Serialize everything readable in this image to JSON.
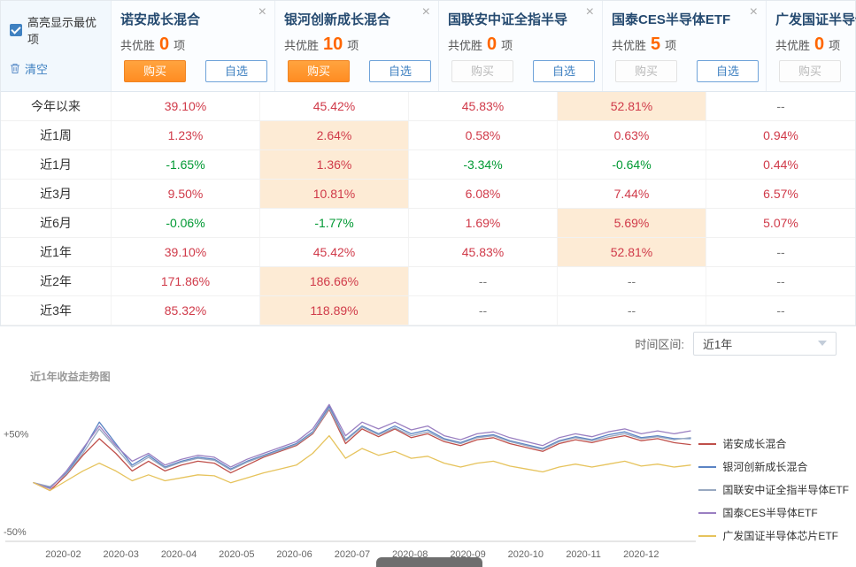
{
  "colors": {
    "positive": "#d03a49",
    "negative": "#009933",
    "highlight": "#fdebd5",
    "accent_blue": "#3f81c1",
    "win_orange": "#ff6600",
    "buy_orange": "#ff9632",
    "fund_name_navy": "#254a70"
  },
  "controls": {
    "highlight_label": "高亮显示最优项",
    "clear_label": "清空"
  },
  "win_text": {
    "prefix": "共优胜",
    "suffix": "项"
  },
  "buttons": {
    "buy": "购买",
    "watch": "自选"
  },
  "funds": [
    {
      "name": "诺安成长混合",
      "win_count": "0",
      "buy_enabled": true
    },
    {
      "name": "银河创新成长混合",
      "win_count": "10",
      "buy_enabled": true
    },
    {
      "name": "国联安中证全指半导",
      "win_count": "0",
      "buy_enabled": false
    },
    {
      "name": "国泰CES半导体ETF",
      "win_count": "5",
      "buy_enabled": false
    },
    {
      "name": "广发国证半导体芯片",
      "win_count": "0",
      "buy_enabled": false
    }
  ],
  "table": {
    "rows": [
      {
        "label": "今年以来",
        "values": [
          {
            "t": "39.10%",
            "c": "up"
          },
          {
            "t": "45.42%",
            "c": "up"
          },
          {
            "t": "45.83%",
            "c": "up"
          },
          {
            "t": "52.81%",
            "c": "up",
            "hl": true
          },
          {
            "t": "--",
            "c": "flat"
          }
        ]
      },
      {
        "label": "近1周",
        "values": [
          {
            "t": "1.23%",
            "c": "up"
          },
          {
            "t": "2.64%",
            "c": "up",
            "hl": true
          },
          {
            "t": "0.58%",
            "c": "up"
          },
          {
            "t": "0.63%",
            "c": "up"
          },
          {
            "t": "0.94%",
            "c": "up"
          }
        ]
      },
      {
        "label": "近1月",
        "values": [
          {
            "t": "-1.65%",
            "c": "down"
          },
          {
            "t": "1.36%",
            "c": "up",
            "hl": true
          },
          {
            "t": "-3.34%",
            "c": "down"
          },
          {
            "t": "-0.64%",
            "c": "down"
          },
          {
            "t": "0.44%",
            "c": "up"
          }
        ]
      },
      {
        "label": "近3月",
        "values": [
          {
            "t": "9.50%",
            "c": "up"
          },
          {
            "t": "10.81%",
            "c": "up",
            "hl": true
          },
          {
            "t": "6.08%",
            "c": "up"
          },
          {
            "t": "7.44%",
            "c": "up"
          },
          {
            "t": "6.57%",
            "c": "up"
          }
        ]
      },
      {
        "label": "近6月",
        "values": [
          {
            "t": "-0.06%",
            "c": "down"
          },
          {
            "t": "-1.77%",
            "c": "down"
          },
          {
            "t": "1.69%",
            "c": "up"
          },
          {
            "t": "5.69%",
            "c": "up",
            "hl": true
          },
          {
            "t": "5.07%",
            "c": "up"
          }
        ]
      },
      {
        "label": "近1年",
        "values": [
          {
            "t": "39.10%",
            "c": "up"
          },
          {
            "t": "45.42%",
            "c": "up"
          },
          {
            "t": "45.83%",
            "c": "up"
          },
          {
            "t": "52.81%",
            "c": "up",
            "hl": true
          },
          {
            "t": "--",
            "c": "flat"
          }
        ]
      },
      {
        "label": "近2年",
        "values": [
          {
            "t": "171.86%",
            "c": "up"
          },
          {
            "t": "186.66%",
            "c": "up",
            "hl": true
          },
          {
            "t": "--",
            "c": "flat"
          },
          {
            "t": "--",
            "c": "flat"
          },
          {
            "t": "--",
            "c": "flat"
          }
        ]
      },
      {
        "label": "近3年",
        "values": [
          {
            "t": "85.32%",
            "c": "up"
          },
          {
            "t": "118.89%",
            "c": "up",
            "hl": true
          },
          {
            "t": "--",
            "c": "flat"
          },
          {
            "t": "--",
            "c": "flat"
          },
          {
            "t": "--",
            "c": "flat"
          }
        ]
      }
    ]
  },
  "time_range": {
    "label": "时间区间:",
    "value": "近1年"
  },
  "chart_data": {
    "type": "line",
    "title": "近1年收益走势图",
    "legend_position": "right",
    "y_domain": [
      -60,
      92
    ],
    "y_ticks": [
      {
        "label": "+50%",
        "value": 50
      },
      {
        "label": "-50%",
        "value": -50
      }
    ],
    "x_labels": [
      "2020-02",
      "2020-03",
      "2020-04",
      "2020-05",
      "2020-06",
      "2020-07",
      "2020-08",
      "2020-09",
      "2020-10",
      "2020-11",
      "2020-12"
    ],
    "series": [
      {
        "name": "诺安成长混合",
        "color": "#bf4f4a",
        "values": [
          0,
          -8,
          8,
          28,
          45,
          30,
          12,
          22,
          12,
          18,
          22,
          20,
          10,
          18,
          26,
          32,
          38,
          50,
          75,
          40,
          55,
          47,
          55,
          46,
          50,
          42,
          38,
          44,
          46,
          40,
          36,
          32,
          40,
          44,
          41,
          45,
          48,
          43,
          45,
          41,
          39
        ]
      },
      {
        "name": "银河创新成长混合",
        "color": "#5b84c4",
        "values": [
          0,
          -5,
          10,
          33,
          62,
          40,
          18,
          28,
          16,
          22,
          26,
          24,
          14,
          22,
          28,
          34,
          40,
          52,
          78,
          44,
          58,
          50,
          58,
          50,
          54,
          45,
          41,
          47,
          49,
          43,
          39,
          35,
          43,
          47,
          44,
          49,
          52,
          46,
          48,
          45,
          45
        ]
      },
      {
        "name": "国联安中证全指半导体ETF",
        "color": "#98a8c0",
        "values": [
          0,
          -4,
          9,
          30,
          55,
          36,
          16,
          26,
          15,
          21,
          25,
          23,
          13,
          21,
          27,
          33,
          39,
          51,
          76,
          43,
          57,
          49,
          56,
          48,
          52,
          44,
          40,
          46,
          48,
          42,
          38,
          34,
          42,
          46,
          43,
          47,
          50,
          45,
          47,
          44,
          46
        ]
      },
      {
        "name": "国泰CES半导体ETF",
        "color": "#9a7fc1",
        "values": [
          0,
          -6,
          12,
          35,
          58,
          38,
          22,
          30,
          18,
          24,
          28,
          26,
          16,
          24,
          30,
          36,
          42,
          55,
          80,
          48,
          62,
          55,
          62,
          54,
          58,
          48,
          44,
          50,
          52,
          46,
          42,
          38,
          46,
          50,
          47,
          52,
          55,
          50,
          53,
          50,
          53
        ]
      },
      {
        "name": "广发国证半导体芯片ETF",
        "color": "#e6c35c",
        "values": [
          0,
          -8,
          2,
          12,
          20,
          12,
          2,
          8,
          2,
          5,
          8,
          7,
          0,
          5,
          10,
          14,
          18,
          30,
          48,
          25,
          35,
          28,
          32,
          25,
          27,
          20,
          16,
          20,
          22,
          17,
          14,
          11,
          16,
          19,
          16,
          19,
          22,
          17,
          19,
          16,
          18
        ]
      }
    ]
  }
}
